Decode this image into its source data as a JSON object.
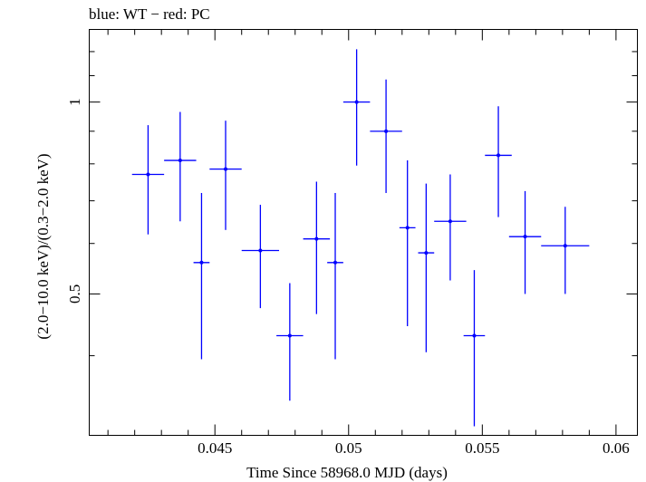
{
  "chart_data": {
    "type": "scatter",
    "title": "blue: WT − red: PC",
    "xlabel": "Time Since 58968.0 MJD (days)",
    "ylabel": "(2.0−10.0 keV)/(0.3−2.0 keV)",
    "xlim": [
      0.0403,
      0.0608
    ],
    "ylim": [
      0.3,
      1.3
    ],
    "y_scale": "log",
    "x_ticks": [
      0.045,
      0.05,
      0.055,
      0.06
    ],
    "x_tick_labels": [
      "0.045",
      "0.05",
      "0.055",
      "0.06"
    ],
    "y_ticks": [
      0.5,
      1
    ],
    "y_tick_labels": [
      "0.5",
      "1"
    ],
    "grid": false,
    "series": [
      {
        "color": "#0000ff",
        "points": [
          {
            "x": 0.0425,
            "y": 0.77,
            "xerr": 0.0006,
            "ylo": 0.62,
            "yhi": 0.92
          },
          {
            "x": 0.0437,
            "y": 0.81,
            "xerr": 0.0006,
            "ylo": 0.65,
            "yhi": 0.965
          },
          {
            "x": 0.0445,
            "y": 0.56,
            "xerr": 0.0003,
            "ylo": 0.395,
            "yhi": 0.72
          },
          {
            "x": 0.0454,
            "y": 0.785,
            "xerr": 0.0006,
            "ylo": 0.63,
            "yhi": 0.935
          },
          {
            "x": 0.0467,
            "y": 0.585,
            "xerr": 0.0007,
            "ylo": 0.475,
            "yhi": 0.69
          },
          {
            "x": 0.0478,
            "y": 0.43,
            "xerr": 0.0005,
            "ylo": 0.34,
            "yhi": 0.52
          },
          {
            "x": 0.0488,
            "y": 0.61,
            "xerr": 0.0005,
            "ylo": 0.465,
            "yhi": 0.75
          },
          {
            "x": 0.0495,
            "y": 0.56,
            "xerr": 0.0003,
            "ylo": 0.395,
            "yhi": 0.72
          },
          {
            "x": 0.0503,
            "y": 1.0,
            "xerr": 0.0005,
            "ylo": 0.795,
            "yhi": 1.21
          },
          {
            "x": 0.0514,
            "y": 0.9,
            "xerr": 0.0006,
            "ylo": 0.72,
            "yhi": 1.085
          },
          {
            "x": 0.0522,
            "y": 0.635,
            "xerr": 0.0003,
            "ylo": 0.445,
            "yhi": 0.81
          },
          {
            "x": 0.0529,
            "y": 0.58,
            "xerr": 0.0003,
            "ylo": 0.405,
            "yhi": 0.745
          },
          {
            "x": 0.0538,
            "y": 0.65,
            "xerr": 0.0006,
            "ylo": 0.525,
            "yhi": 0.77
          },
          {
            "x": 0.0547,
            "y": 0.43,
            "xerr": 0.0004,
            "ylo": 0.31,
            "yhi": 0.545
          },
          {
            "x": 0.0556,
            "y": 0.825,
            "xerr": 0.0005,
            "ylo": 0.66,
            "yhi": 0.985
          },
          {
            "x": 0.0566,
            "y": 0.615,
            "xerr": 0.0006,
            "ylo": 0.5,
            "yhi": 0.725
          },
          {
            "x": 0.0581,
            "y": 0.595,
            "xerr": 0.0009,
            "ylo": 0.5,
            "yhi": 0.685
          }
        ]
      }
    ]
  }
}
